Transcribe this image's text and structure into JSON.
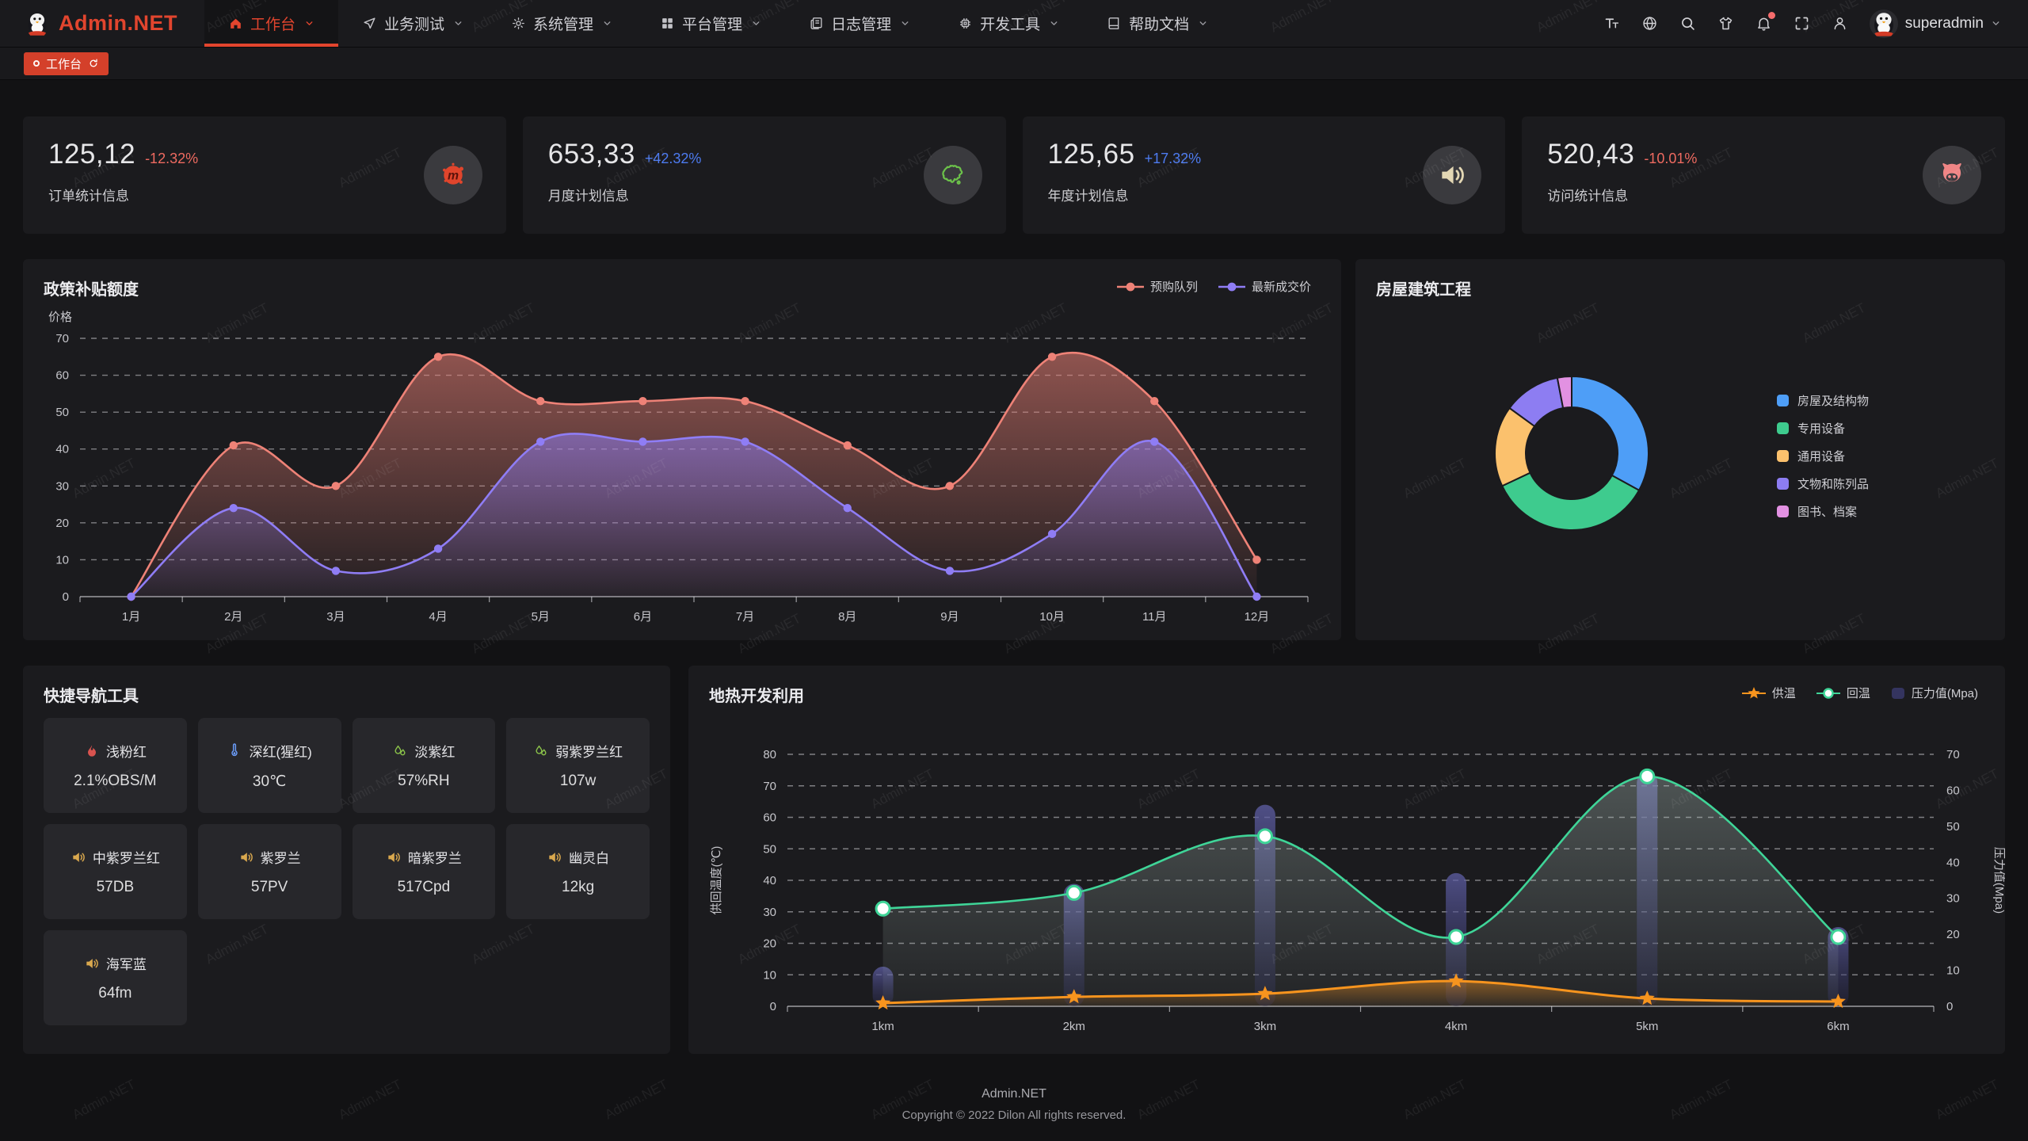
{
  "app": {
    "brand": "Admin.NET",
    "watermark": "Admin.NET",
    "accent_color": "#e2452e"
  },
  "nav": {
    "items": [
      {
        "label": "工作台",
        "icon": "home-icon",
        "active": true
      },
      {
        "label": "业务测试",
        "icon": "send-icon",
        "active": false
      },
      {
        "label": "系统管理",
        "icon": "gear-icon",
        "active": false
      },
      {
        "label": "平台管理",
        "icon": "grid-icon",
        "active": false
      },
      {
        "label": "日志管理",
        "icon": "doc-icon",
        "active": false
      },
      {
        "label": "开发工具",
        "icon": "chip-icon",
        "active": false
      },
      {
        "label": "帮助文档",
        "icon": "book-icon",
        "active": false
      }
    ],
    "tools": [
      {
        "icon": "font-size-icon"
      },
      {
        "icon": "language-icon"
      },
      {
        "icon": "search-icon"
      },
      {
        "icon": "theme-icon"
      },
      {
        "icon": "bell-icon",
        "badge": true
      },
      {
        "icon": "fullscreen-icon"
      },
      {
        "icon": "profile-icon"
      }
    ],
    "user": {
      "name": "superadmin",
      "avatar_icon": "penguin-icon"
    }
  },
  "tabs": {
    "active_label": "工作台",
    "refresh_icon": "refresh-icon"
  },
  "stat_cards": [
    {
      "value": "125,12",
      "delta": "-12.32%",
      "direction": "down",
      "label": "订单统计信息",
      "icon": "meetup-icon",
      "icon_color": "#e0452c"
    },
    {
      "value": "653,33",
      "delta": "+42.32%",
      "direction": "up",
      "label": "月度计划信息",
      "icon": "china-map-icon",
      "icon_color": "#6cc24a"
    },
    {
      "value": "125,65",
      "delta": "+17.32%",
      "direction": "up",
      "label": "年度计划信息",
      "icon": "speaker-icon",
      "icon_color": "#e3d7b4"
    },
    {
      "value": "520,43",
      "delta": "-10.01%",
      "direction": "down",
      "label": "访问统计信息",
      "icon": "cat-icon",
      "icon_color": "#ef8585"
    }
  ],
  "quick_nav": {
    "title": "快捷导航工具",
    "tiles": [
      {
        "icon": "fire-icon",
        "icon_color": "#d9534f",
        "name": "浅粉红",
        "value": "2.1%OBS/M"
      },
      {
        "icon": "thermometer-icon",
        "icon_color": "#6a9bf7",
        "name": "深红(猩红)",
        "value": "30℃"
      },
      {
        "icon": "humidity-icon",
        "icon_color": "#8bc34a",
        "name": "淡紫红",
        "value": "57%RH"
      },
      {
        "icon": "humidity-icon",
        "icon_color": "#8bc34a",
        "name": "弱紫罗兰红",
        "value": "107w"
      },
      {
        "icon": "speaker-icon",
        "icon_color": "#d9a84e",
        "name": "中紫罗兰红",
        "value": "57DB"
      },
      {
        "icon": "speaker-icon",
        "icon_color": "#d9a84e",
        "name": "紫罗兰",
        "value": "57PV"
      },
      {
        "icon": "speaker-icon",
        "icon_color": "#d9a84e",
        "name": "暗紫罗兰",
        "value": "517Cpd"
      },
      {
        "icon": "speaker-icon",
        "icon_color": "#d9a84e",
        "name": "幽灵白",
        "value": "12kg"
      },
      {
        "icon": "speaker-icon",
        "icon_color": "#d9a84e",
        "name": "海军蓝",
        "value": "64fm"
      }
    ]
  },
  "chart_data": [
    {
      "type": "area",
      "title": "政策补贴额度",
      "ylabel": "价格",
      "ylim": [
        0,
        70
      ],
      "y_ticks": [
        0,
        10,
        20,
        30,
        40,
        50,
        60,
        70
      ],
      "grid": "dashed",
      "legend_position": "top-right",
      "categories": [
        "1月",
        "2月",
        "3月",
        "4月",
        "5月",
        "6月",
        "7月",
        "8月",
        "9月",
        "10月",
        "11月",
        "12月"
      ],
      "series": [
        {
          "name": "预购队列",
          "color": "#ee8277",
          "values": [
            0,
            41,
            30,
            65,
            53,
            53,
            53,
            41,
            30,
            65,
            53,
            10
          ]
        },
        {
          "name": "最新成交价",
          "color": "#8f7df5",
          "values": [
            0,
            24,
            7,
            13,
            42,
            42,
            42,
            24,
            7,
            17,
            42,
            0
          ]
        }
      ]
    },
    {
      "type": "pie",
      "title": "房屋建筑工程",
      "donut": true,
      "legend_position": "right",
      "slices": [
        {
          "label": "房屋及结构物",
          "value": 33,
          "color": "#4e9ef7"
        },
        {
          "label": "专用设备",
          "value": 35,
          "color": "#3ecb8e"
        },
        {
          "label": "通用设备",
          "value": 17,
          "color": "#fbc16d"
        },
        {
          "label": "文物和陈列品",
          "value": 12,
          "color": "#8d7df2"
        },
        {
          "label": "图书、档案",
          "value": 3,
          "color": "#e291e2"
        }
      ]
    },
    {
      "type": "line+bar",
      "title": "地热开发利用",
      "categories": [
        "1km",
        "2km",
        "3km",
        "4km",
        "5km",
        "6km"
      ],
      "left_axis": {
        "label": "供回温度(℃)",
        "lim": [
          0,
          80
        ],
        "ticks": [
          0,
          10,
          20,
          30,
          40,
          50,
          60,
          70,
          80
        ]
      },
      "right_axis": {
        "label": "压力值(Mpa)",
        "lim": [
          0,
          70
        ],
        "ticks": [
          0,
          10,
          20,
          30,
          40,
          50,
          60,
          70
        ]
      },
      "legend_position": "top-right",
      "series": [
        {
          "name": "供温",
          "type": "line",
          "marker": "star",
          "axis": "left",
          "color": "#f7941e",
          "values": [
            1,
            3,
            4,
            8,
            2.5,
            1.5
          ]
        },
        {
          "name": "回温",
          "type": "line",
          "marker": "circle",
          "axis": "left",
          "color": "#3fd598",
          "values": [
            31,
            36,
            54,
            22,
            73,
            22
          ]
        },
        {
          "name": "压力值(Mpa)",
          "type": "bar",
          "axis": "right",
          "color": "#3a3a66",
          "values": [
            11,
            34,
            56,
            37,
            65,
            22
          ]
        }
      ]
    }
  ],
  "footer": {
    "line1": "Admin.NET",
    "line2": "Copyright © 2022 Dilon All rights reserved."
  }
}
